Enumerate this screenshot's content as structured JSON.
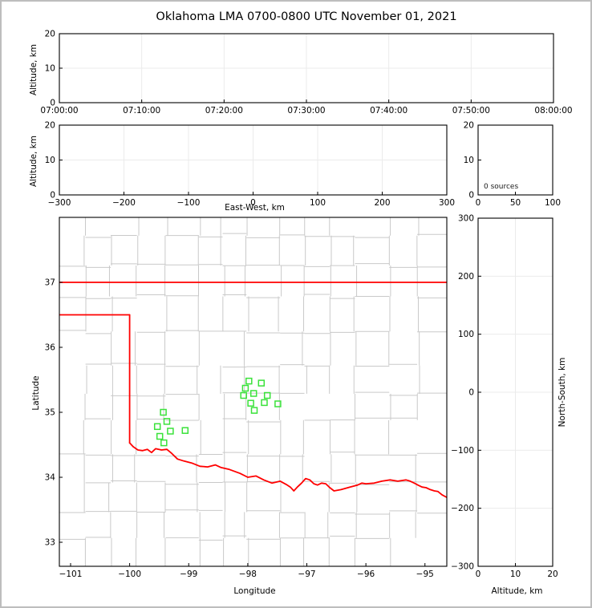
{
  "title": "Oklahoma LMA 0700-0800 UTC November 01, 2021",
  "colors": {
    "state_border": "#ff0000",
    "county_lines": "#c9c9c9",
    "station_marker": "#3ae23a",
    "gridline": "#ebebeb",
    "axis": "#000000",
    "figure_border": "#bdbdbd",
    "background": "#ffffff"
  },
  "panels": {
    "time_height": {
      "ylabel": "Altitude, km",
      "yticks": [
        "0",
        "10",
        "20"
      ],
      "xticks": [
        "07:00:00",
        "07:10:00",
        "07:20:00",
        "07:30:00",
        "07:40:00",
        "07:50:00",
        "08:00:00"
      ]
    },
    "ew_height": {
      "ylabel": "Altitude, km",
      "xlabel": "East-West, km",
      "yticks": [
        "0",
        "10",
        "20"
      ],
      "xticks": [
        "−300",
        "−200",
        "−100",
        "0",
        "100",
        "200",
        "300"
      ]
    },
    "histogram": {
      "annotation": "0 sources",
      "yticks": [
        "0",
        "10",
        "20"
      ],
      "xticks": [
        "0",
        "50",
        "100"
      ]
    },
    "map": {
      "xlabel": "Longitude",
      "ylabel": "Latitude",
      "xticks": [
        "−101",
        "−100",
        "−99",
        "−98",
        "−97",
        "−96",
        "−95"
      ],
      "yticks": [
        "33",
        "34",
        "35",
        "36",
        "37"
      ]
    },
    "ns_height": {
      "xlabel": "Altitude, km",
      "ylabel": "North-South, km",
      "xticks": [
        "0",
        "10",
        "20"
      ],
      "yticks": [
        "300",
        "200",
        "100",
        "0",
        "−100",
        "−200",
        "−300"
      ]
    }
  },
  "chart_data": [
    {
      "id": "time_height",
      "type": "scatter",
      "ylabel": "Altitude, km",
      "x_range": [
        0,
        3600
      ],
      "x_ticks": [
        0,
        600,
        1200,
        1800,
        2400,
        3000,
        3600
      ],
      "x_tick_labels": [
        "07:00:00",
        "07:10:00",
        "07:20:00",
        "07:30:00",
        "07:40:00",
        "07:50:00",
        "08:00:00"
      ],
      "y_range": [
        0,
        20
      ],
      "y_ticks": [
        0,
        10,
        20
      ],
      "points": []
    },
    {
      "id": "ew_height",
      "type": "scatter",
      "xlabel": "East-West, km",
      "ylabel": "Altitude, km",
      "x_range": [
        -300,
        300
      ],
      "x_ticks": [
        -300,
        -200,
        -100,
        0,
        100,
        200,
        300
      ],
      "y_range": [
        0,
        20
      ],
      "y_ticks": [
        0,
        10,
        20
      ],
      "points": []
    },
    {
      "id": "histogram",
      "type": "line",
      "annotation": "0 sources",
      "source_count": 0,
      "x_range": [
        0,
        100
      ],
      "x_ticks": [
        0,
        50,
        100
      ],
      "y_range": [
        0,
        20
      ],
      "y_ticks": [
        0,
        10,
        20
      ],
      "points": []
    },
    {
      "id": "map",
      "type": "scatter",
      "xlabel": "Longitude",
      "ylabel": "Latitude",
      "x_range": [
        -101.19,
        -94.63
      ],
      "x_ticks": [
        -101,
        -100,
        -99,
        -98,
        -97,
        -96,
        -95
      ],
      "y_range": [
        32.63,
        38.0
      ],
      "y_ticks": [
        33,
        34,
        35,
        36,
        37
      ],
      "stations_lon_lat": [
        [
          -99.43,
          35.0
        ],
        [
          -99.37,
          34.86
        ],
        [
          -99.53,
          34.78
        ],
        [
          -99.31,
          34.71
        ],
        [
          -99.06,
          34.72
        ],
        [
          -99.49,
          34.63
        ],
        [
          -99.42,
          34.53
        ],
        [
          -97.98,
          35.48
        ],
        [
          -97.77,
          35.45
        ],
        [
          -98.04,
          35.37
        ],
        [
          -97.9,
          35.29
        ],
        [
          -98.07,
          35.26
        ],
        [
          -97.67,
          35.26
        ],
        [
          -97.95,
          35.14
        ],
        [
          -97.72,
          35.15
        ],
        [
          -97.49,
          35.13
        ],
        [
          -97.89,
          35.03
        ]
      ],
      "oklahoma_border": {
        "north_lat37": [
          [
            -101.19,
            37.0
          ],
          [
            -94.63,
            37.0
          ]
        ],
        "panhandle_south_lat36_5": [
          [
            -101.19,
            36.5
          ],
          [
            -100.0,
            36.5
          ]
        ],
        "west_lon100": [
          [
            -100.0,
            36.5
          ],
          [
            -100.0,
            34.53
          ]
        ],
        "red_river_south": [
          [
            -100.0,
            34.53
          ],
          [
            -99.94,
            34.47
          ],
          [
            -99.86,
            34.42
          ],
          [
            -99.78,
            34.41
          ],
          [
            -99.7,
            34.43
          ],
          [
            -99.63,
            34.38
          ],
          [
            -99.56,
            34.44
          ],
          [
            -99.46,
            34.42
          ],
          [
            -99.37,
            34.43
          ],
          [
            -99.29,
            34.37
          ],
          [
            -99.19,
            34.28
          ],
          [
            -99.08,
            34.25
          ],
          [
            -98.95,
            34.22
          ],
          [
            -98.81,
            34.17
          ],
          [
            -98.68,
            34.16
          ],
          [
            -98.55,
            34.19
          ],
          [
            -98.45,
            34.15
          ],
          [
            -98.31,
            34.12
          ],
          [
            -98.13,
            34.06
          ],
          [
            -98.0,
            34.0
          ],
          [
            -97.86,
            34.02
          ],
          [
            -97.73,
            33.96
          ],
          [
            -97.59,
            33.91
          ],
          [
            -97.45,
            33.94
          ],
          [
            -97.35,
            33.89
          ],
          [
            -97.28,
            33.85
          ],
          [
            -97.22,
            33.79
          ],
          [
            -97.16,
            33.85
          ],
          [
            -97.09,
            33.91
          ],
          [
            -97.02,
            33.98
          ],
          [
            -96.95,
            33.96
          ],
          [
            -96.88,
            33.9
          ],
          [
            -96.82,
            33.88
          ],
          [
            -96.75,
            33.91
          ],
          [
            -96.68,
            33.9
          ],
          [
            -96.61,
            33.84
          ],
          [
            -96.54,
            33.79
          ],
          [
            -96.42,
            33.81
          ],
          [
            -96.27,
            33.85
          ],
          [
            -96.14,
            33.88
          ],
          [
            -96.07,
            33.91
          ],
          [
            -96.0,
            33.9
          ],
          [
            -95.86,
            33.91
          ],
          [
            -95.73,
            33.94
          ],
          [
            -95.59,
            33.96
          ],
          [
            -95.46,
            33.94
          ],
          [
            -95.32,
            33.96
          ],
          [
            -95.25,
            33.94
          ],
          [
            -95.18,
            33.91
          ],
          [
            -95.12,
            33.88
          ],
          [
            -95.05,
            33.85
          ],
          [
            -94.98,
            33.84
          ],
          [
            -94.91,
            33.81
          ],
          [
            -94.84,
            33.79
          ],
          [
            -94.78,
            33.78
          ],
          [
            -94.71,
            33.73
          ],
          [
            -94.63,
            33.69
          ]
        ]
      }
    },
    {
      "id": "ns_height",
      "type": "scatter",
      "xlabel": "Altitude, km",
      "ylabel": "North-South, km",
      "x_range": [
        0,
        20
      ],
      "x_ticks": [
        0,
        10,
        20
      ],
      "y_range": [
        -300,
        300
      ],
      "y_ticks": [
        300,
        200,
        100,
        0,
        -100,
        -200,
        -300
      ],
      "points": []
    }
  ]
}
